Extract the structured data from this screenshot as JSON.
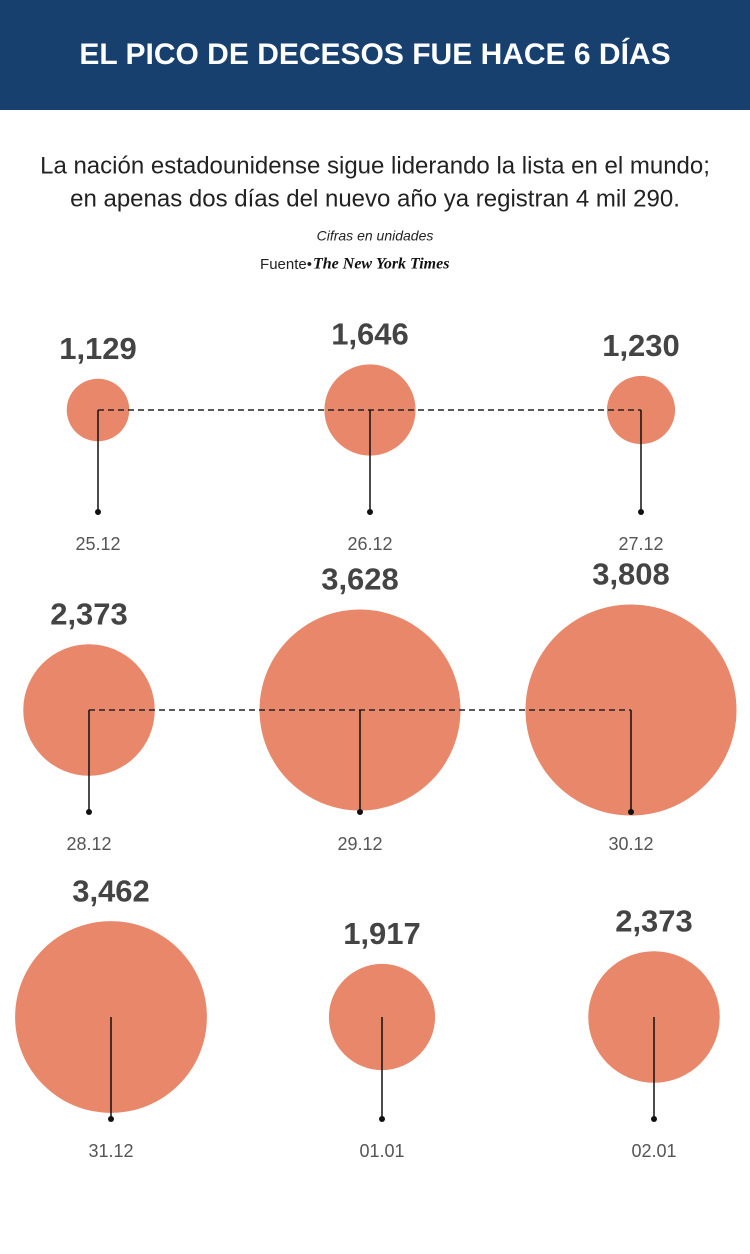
{
  "chart_data": {
    "type": "bubble",
    "title": "EL PICO DE DECESOS FUE HACE 6 DÍAS",
    "subtitle": [
      "La nación estadounidense sigue liderando la lista en el mundo;",
      "en apenas dos días del nuevo año ya registran 4 mil 290."
    ],
    "note": "Cifras en unidades",
    "source_label": "Fuente•",
    "source": "The New York Times",
    "categories": [
      "25.12",
      "26.12",
      "27.12",
      "28.12",
      "29.12",
      "30.12",
      "31.12",
      "01.01",
      "02.01"
    ],
    "values": [
      1129,
      1646,
      1230,
      2373,
      3628,
      3808,
      3462,
      1917,
      2373
    ],
    "value_labels": [
      "1,129",
      "1,646",
      "1,230",
      "2,373",
      "3,628",
      "3,808",
      "3,462",
      "1,917",
      "2,373"
    ],
    "color": "#e8876a"
  }
}
